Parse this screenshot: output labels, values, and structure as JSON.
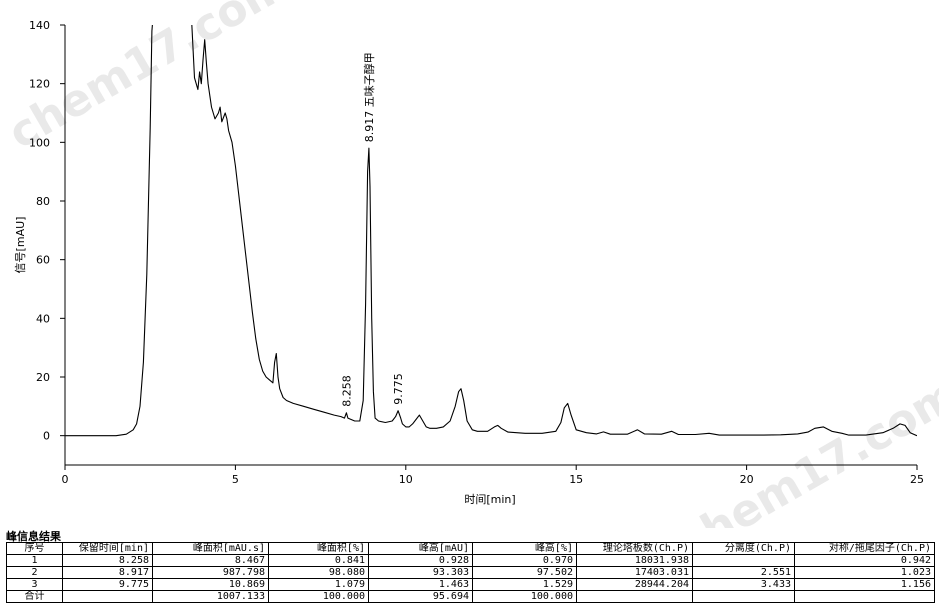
{
  "chart_data": {
    "type": "line",
    "xlabel": "时间[min]",
    "ylabel": "信号[mAU]",
    "xlim": [
      0,
      25
    ],
    "ylim": [
      -10,
      140
    ],
    "xticks": [
      0,
      5,
      10,
      15,
      20,
      25
    ],
    "yticks": [
      0,
      20,
      40,
      60,
      80,
      100,
      120,
      140
    ],
    "grid": false,
    "series": [
      {
        "color": "#000000",
        "x": [
          0,
          1.0,
          1.5,
          1.8,
          2.0,
          2.1,
          2.2,
          2.3,
          2.4,
          2.5,
          2.55,
          2.6,
          2.65,
          3.7,
          3.8,
          3.9,
          3.95,
          4.0,
          4.05,
          4.1,
          4.15,
          4.2,
          4.25,
          4.3,
          4.4,
          4.5,
          4.55,
          4.6,
          4.7,
          4.75,
          4.8,
          4.9,
          5.0,
          5.1,
          5.2,
          5.3,
          5.4,
          5.5,
          5.6,
          5.7,
          5.8,
          5.9,
          6.0,
          6.1,
          6.15,
          6.2,
          6.25,
          6.3,
          6.4,
          6.5,
          6.7,
          7.0,
          7.3,
          7.6,
          7.9,
          8.1,
          8.2,
          8.258,
          8.3,
          8.5,
          8.65,
          8.75,
          8.82,
          8.88,
          8.917,
          8.95,
          9.0,
          9.05,
          9.1,
          9.2,
          9.4,
          9.6,
          9.7,
          9.775,
          9.85,
          9.9,
          10.0,
          10.1,
          10.2,
          10.3,
          10.4,
          10.5,
          10.6,
          10.7,
          10.9,
          11.1,
          11.3,
          11.45,
          11.55,
          11.62,
          11.7,
          11.8,
          11.95,
          12.1,
          12.4,
          12.6,
          12.7,
          12.8,
          13.0,
          13.5,
          14.0,
          14.4,
          14.55,
          14.65,
          14.75,
          14.85,
          15.0,
          15.3,
          15.6,
          15.8,
          16.0,
          16.5,
          16.8,
          17.0,
          17.5,
          17.8,
          18.0,
          18.5,
          18.9,
          19.2,
          19.5,
          20.0,
          20.5,
          21.0,
          21.5,
          21.8,
          22.0,
          22.25,
          22.5,
          22.8,
          23.0,
          23.5,
          24.0,
          24.3,
          24.5,
          24.65,
          24.8,
          25.0
        ],
        "y": [
          0,
          0,
          0,
          0.5,
          2,
          4,
          10,
          25,
          55,
          105,
          138,
          145,
          145,
          145,
          122,
          118,
          124,
          120,
          128,
          135,
          127,
          120,
          116,
          112,
          108,
          110,
          112,
          107,
          110,
          108,
          104,
          100,
          92,
          82,
          72,
          62,
          52,
          42,
          33,
          26,
          22,
          20,
          19,
          18,
          25,
          28,
          20,
          16,
          13,
          12,
          11,
          10,
          9,
          8,
          7,
          6.5,
          6,
          7.8,
          6,
          5,
          5,
          12,
          45,
          90,
          98,
          85,
          40,
          15,
          6,
          5,
          4.5,
          5,
          6.5,
          8.5,
          6,
          4,
          3,
          3,
          4,
          5.5,
          7,
          5,
          3,
          2.5,
          2.5,
          3,
          5,
          10,
          15,
          16,
          12,
          5,
          2,
          1.5,
          1.5,
          3,
          3.5,
          2.5,
          1.2,
          0.8,
          0.8,
          1.5,
          4.5,
          9.5,
          11,
          7,
          2,
          1,
          0.6,
          1.3,
          0.5,
          0.5,
          2,
          0.6,
          0.5,
          1.5,
          0.4,
          0.4,
          0.8,
          0.2,
          0.2,
          0.2,
          0.2,
          0.3,
          0.6,
          1.2,
          2.5,
          3,
          1.5,
          0.8,
          0.2,
          0.2,
          1,
          2.5,
          4,
          3.5,
          1,
          0
        ]
      }
    ],
    "peak_labels": [
      {
        "x": 8.258,
        "y": 7.8,
        "text": "8.258"
      },
      {
        "x": 8.917,
        "y": 98,
        "text": "8.917 五味子醇甲"
      },
      {
        "x": 9.775,
        "y": 8.5,
        "text": "9.775"
      }
    ]
  },
  "results": {
    "title": "峰信息结果",
    "headers": [
      "序号",
      "保留时间[min]",
      "峰面积[mAU.s]",
      "峰面积[%]",
      "峰高[mAU]",
      "峰高[%]",
      "理论塔板数(Ch.P)",
      "分离度(Ch.P)",
      "对称/拖尾因子(Ch.P)"
    ],
    "rows": [
      [
        "1",
        "8.258",
        "8.467",
        "0.841",
        "0.928",
        "0.970",
        "18031.938",
        "",
        "0.942"
      ],
      [
        "2",
        "8.917",
        "987.798",
        "98.080",
        "93.303",
        "97.502",
        "17403.031",
        "2.551",
        "1.023"
      ],
      [
        "3",
        "9.775",
        "10.869",
        "1.079",
        "1.463",
        "1.529",
        "28944.204",
        "3.433",
        "1.156"
      ],
      [
        "合计",
        "",
        "1007.133",
        "100.000",
        "95.694",
        "100.000",
        "",
        "",
        ""
      ]
    ]
  }
}
